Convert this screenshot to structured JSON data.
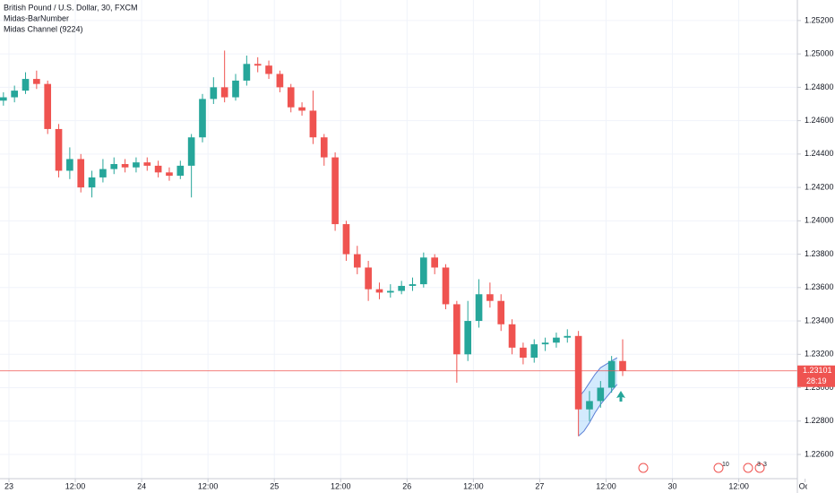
{
  "chart_data": {
    "type": "candlestick",
    "title": "British Pound / U.S. Dollar, 30, FXCM",
    "indicators": [
      "Midas-BarNumber",
      "Midas Channel (9224)"
    ],
    "up_color": "#26a69a",
    "down_color": "#ef5350",
    "x": [
      -2,
      0,
      2,
      4,
      6,
      8,
      10,
      12,
      14,
      16,
      18,
      20,
      22,
      24,
      26,
      28,
      30,
      32,
      34,
      36,
      38,
      40,
      42,
      44,
      46,
      48,
      50,
      52,
      54,
      56,
      58,
      60,
      62,
      64,
      66,
      68,
      70,
      72,
      74,
      76,
      78,
      80,
      82,
      84,
      86,
      88,
      90,
      92,
      94,
      96,
      98,
      100,
      102,
      104,
      106,
      108,
      110
    ],
    "open": [
      1.2472,
      1.2474,
      1.2478,
      1.2485,
      1.2482,
      1.2455,
      1.243,
      1.2437,
      1.242,
      1.2426,
      1.2431,
      1.2434,
      1.2432,
      1.2435,
      1.2433,
      1.2429,
      1.2427,
      1.2433,
      1.245,
      1.2473,
      1.248,
      1.2474,
      1.2484,
      1.2494,
      1.2493,
      1.2488,
      1.248,
      1.2468,
      1.2466,
      1.245,
      1.2438,
      1.2398,
      1.238,
      1.2372,
      1.2359,
      1.2357,
      1.2358,
      1.2361,
      1.2362,
      1.2378,
      1.2372,
      1.235,
      1.232,
      1.234,
      1.2356,
      1.2352,
      1.2338,
      1.2324,
      1.2318,
      1.2326,
      1.2327,
      1.233,
      1.2331,
      1.2287,
      1.2292,
      1.23,
      1.2316
    ],
    "high": [
      1.2477,
      1.2481,
      1.2489,
      1.249,
      1.2484,
      1.2458,
      1.2444,
      1.244,
      1.243,
      1.2437,
      1.2438,
      1.2437,
      1.2438,
      1.2438,
      1.2436,
      1.2432,
      1.2436,
      1.2452,
      1.2476,
      1.2486,
      1.2502,
      1.2488,
      1.2499,
      1.2498,
      1.2496,
      1.249,
      1.2482,
      1.2471,
      1.2478,
      1.2452,
      1.2441,
      1.24,
      1.2385,
      1.2376,
      1.2363,
      1.2362,
      1.2364,
      1.2366,
      1.2381,
      1.238,
      1.2374,
      1.2352,
      1.2352,
      1.2365,
      1.2363,
      1.2356,
      1.2341,
      1.2327,
      1.2329,
      1.233,
      1.2333,
      1.2335,
      1.2334,
      1.2298,
      1.2304,
      1.2319,
      1.2329
    ],
    "low": [
      1.2469,
      1.2471,
      1.2476,
      1.2479,
      1.2452,
      1.2426,
      1.2425,
      1.2417,
      1.2414,
      1.2423,
      1.2428,
      1.2429,
      1.2429,
      1.243,
      1.2426,
      1.2424,
      1.2425,
      1.2414,
      1.2447,
      1.247,
      1.2471,
      1.2472,
      1.2481,
      1.2489,
      1.2485,
      1.2477,
      1.2465,
      1.2463,
      1.2446,
      1.2433,
      1.2394,
      1.2376,
      1.2368,
      1.2352,
      1.2353,
      1.2354,
      1.2356,
      1.2358,
      1.236,
      1.2368,
      1.2347,
      1.2303,
      1.2316,
      1.2336,
      1.2348,
      1.2334,
      1.232,
      1.2314,
      1.2315,
      1.2322,
      1.2324,
      1.2327,
      1.2271,
      1.228,
      1.2288,
      1.2297,
      1.2307
    ],
    "close": [
      1.2474,
      1.2478,
      1.2485,
      1.2482,
      1.2455,
      1.243,
      1.2437,
      1.242,
      1.2426,
      1.2431,
      1.2434,
      1.2432,
      1.2435,
      1.2433,
      1.2429,
      1.2427,
      1.2433,
      1.245,
      1.2473,
      1.248,
      1.2474,
      1.2484,
      1.2494,
      1.2493,
      1.2488,
      1.248,
      1.2468,
      1.2466,
      1.245,
      1.2438,
      1.2398,
      1.238,
      1.2372,
      1.2359,
      1.2357,
      1.2358,
      1.2361,
      1.2362,
      1.2378,
      1.2372,
      1.235,
      1.232,
      1.234,
      1.2356,
      1.2352,
      1.2338,
      1.2324,
      1.2318,
      1.2326,
      1.2327,
      1.233,
      1.2331,
      1.2287,
      1.2292,
      1.23,
      1.2316,
      1.23101
    ],
    "channel": {
      "x": [
        103,
        104,
        105,
        106,
        107,
        108,
        109,
        110
      ],
      "upper": [
        1.2294,
        1.2298,
        1.2303,
        1.2308,
        1.2312,
        1.2314,
        1.2316,
        1.2318
      ],
      "lower": [
        1.2271,
        1.2274,
        1.2279,
        1.2285,
        1.229,
        1.2294,
        1.2298,
        1.2302
      ]
    },
    "last_price": 1.23101,
    "countdown": "28:19",
    "events": [
      "10",
      "3",
      "3"
    ],
    "xlim": [
      -1.62,
      142.6
    ],
    "xticks": [
      {
        "value": 0,
        "label": "23"
      },
      {
        "value": 12,
        "label": "12:00"
      },
      {
        "value": 24,
        "label": "24"
      },
      {
        "value": 36,
        "label": "12:00"
      },
      {
        "value": 48,
        "label": "25"
      },
      {
        "value": 60,
        "label": "12:00"
      },
      {
        "value": 72,
        "label": "26"
      },
      {
        "value": 84,
        "label": "12:00"
      },
      {
        "value": 96,
        "label": "27"
      },
      {
        "value": 108,
        "label": "12:00"
      },
      {
        "value": 120,
        "label": "30"
      },
      {
        "value": 132,
        "label": "12:00"
      },
      {
        "value": 144,
        "label": "Oct"
      }
    ],
    "ylim": [
      1.22455,
      1.25323
    ],
    "yticks": [
      {
        "value": 1.252,
        "label": "1.25200"
      },
      {
        "value": 1.25,
        "label": "1.25000"
      },
      {
        "value": 1.248,
        "label": "1.24800"
      },
      {
        "value": 1.246,
        "label": "1.24600"
      },
      {
        "value": 1.244,
        "label": "1.24400"
      },
      {
        "value": 1.242,
        "label": "1.24200"
      },
      {
        "value": 1.24,
        "label": "1.24000"
      },
      {
        "value": 1.238,
        "label": "1.23800"
      },
      {
        "value": 1.236,
        "label": "1.23600"
      },
      {
        "value": 1.234,
        "label": "1.23400"
      },
      {
        "value": 1.232,
        "label": "1.23200"
      },
      {
        "value": 1.23,
        "label": "1.23000"
      },
      {
        "value": 1.228,
        "label": "1.22800"
      },
      {
        "value": 1.226,
        "label": "1.22600"
      }
    ],
    "grid": true
  }
}
